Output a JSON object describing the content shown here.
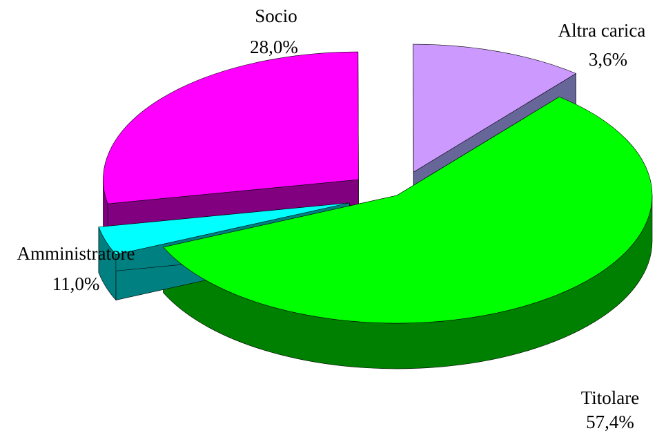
{
  "chart_data": {
    "type": "pie",
    "style": "3d-exploded",
    "title": "",
    "slices": [
      {
        "name": "Titolare",
        "value": 57.4,
        "label": "57,4%",
        "color": "#00ff00",
        "side_color": "#008000"
      },
      {
        "name": "Altra carica",
        "value": 3.6,
        "label": "3,6%",
        "color": "#00ffff",
        "side_color": "#008080"
      },
      {
        "name": "Socio",
        "value": 28.0,
        "label": "28,0%",
        "color": "#ff00ff",
        "side_color": "#800080"
      },
      {
        "name": "Amministratore",
        "value": 11.0,
        "label": "11,0%",
        "color": "#cc99ff",
        "side_color": "#666699"
      }
    ]
  }
}
